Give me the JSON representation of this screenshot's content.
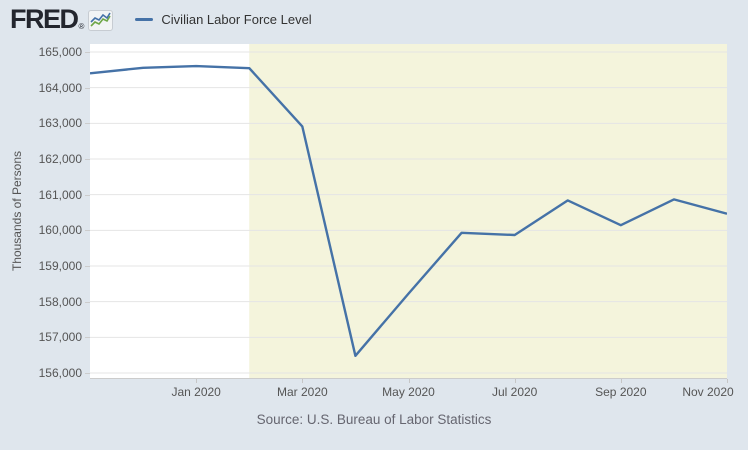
{
  "header": {
    "logo_text": "FRED",
    "registered_mark": "®",
    "legend": {
      "series_label": "Civilian Labor Force Level"
    }
  },
  "chart_data": {
    "type": "line",
    "title": "Civilian Labor Force Level",
    "ylabel": "Thousands of Persons",
    "xlabel": "",
    "x": [
      "Nov 2019",
      "Dec 2019",
      "Jan 2020",
      "Feb 2020",
      "Mar 2020",
      "Apr 2020",
      "May 2020",
      "Jun 2020",
      "Jul 2020",
      "Aug 2020",
      "Sep 2020",
      "Oct 2020",
      "Nov 2020"
    ],
    "values": [
      164404,
      164556,
      164606,
      164546,
      162913,
      156481,
      158227,
      159932,
      159870,
      160838,
      160143,
      160867,
      160467
    ],
    "units": "Thousands of Persons",
    "ylim": [
      156000,
      165000
    ],
    "ytick_step": 1000,
    "ytick_labels": [
      "156,000",
      "157,000",
      "158,000",
      "159,000",
      "160,000",
      "161,000",
      "162,000",
      "163,000",
      "164,000",
      "165,000"
    ],
    "xticks": [
      {
        "label": "Jan 2020",
        "index": 2
      },
      {
        "label": "Mar 2020",
        "index": 4
      },
      {
        "label": "May 2020",
        "index": 6
      },
      {
        "label": "Jul 2020",
        "index": 8
      },
      {
        "label": "Sep 2020",
        "index": 10
      },
      {
        "label": "Nov 2020",
        "index": 12
      }
    ],
    "grid": true,
    "legend_position": "header-left",
    "recession_band": {
      "start_label": "Feb 2020",
      "start_index": 3,
      "end_index": 12
    }
  },
  "theme": {
    "page_bg": "#dfe6ed",
    "plot_bg": "#ffffff",
    "recession_band_color": "#f4f4dc",
    "grid_color": "#e5e5e5",
    "line_color": "#4572a7",
    "axis_text_color": "#555555",
    "source_text_color": "#666670",
    "legend_text_color": "#333333",
    "logo_color": "#23262e",
    "logo_icon_blue": "#4572a7",
    "logo_icon_green": "#6fa747"
  },
  "footer": {
    "source": "Source: U.S. Bureau of Labor Statistics"
  }
}
